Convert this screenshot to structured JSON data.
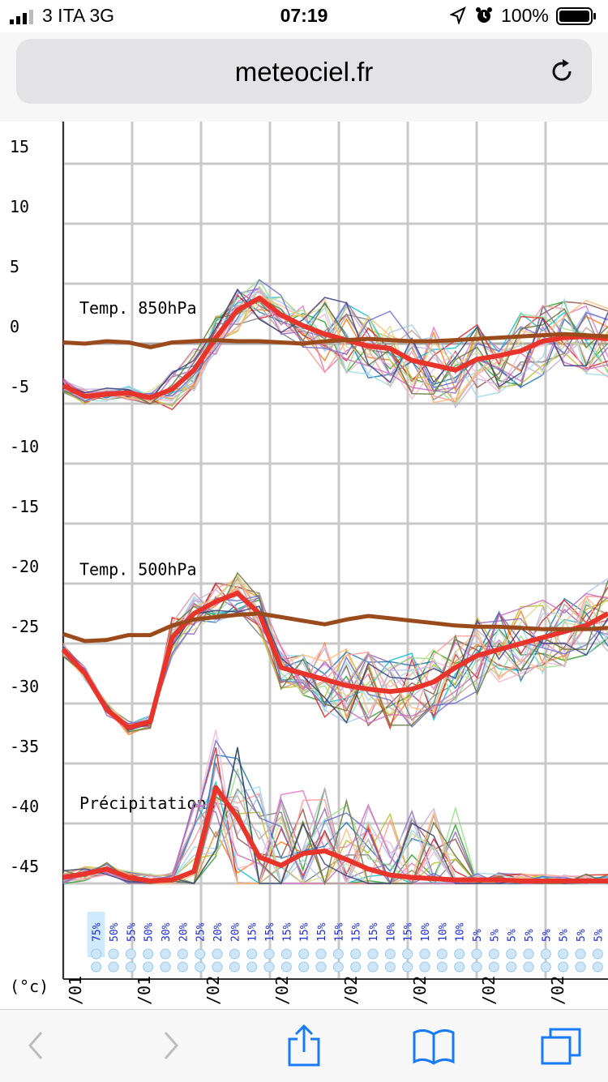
{
  "status_bar": {
    "carrier": "3 ITA   3G",
    "time": "07:19",
    "battery": "100%",
    "icons": [
      "signal-icon",
      "location-icon",
      "alarm-icon",
      "battery-icon"
    ]
  },
  "browser": {
    "url": "meteociel.fr",
    "reload_icon": "reload-icon",
    "toolbar_icons": [
      "back-icon",
      "forward-icon",
      "share-icon",
      "bookmarks-icon",
      "tabs-icon"
    ]
  },
  "chart_data": {
    "type": "line",
    "ylabel": "(°c)",
    "y_ticks": [
      15,
      10,
      5,
      0,
      -5,
      -10,
      -15,
      -20,
      -25,
      -30,
      -35,
      -40,
      -45
    ],
    "ylim": [
      -45,
      17
    ],
    "grid": true,
    "panels": [
      "Temp. 850hPa",
      "Temp. 500hPa",
      "Précipitations"
    ],
    "x_labels": [
      "/01",
      "/01",
      "/02",
      "/02",
      "/02",
      "/02",
      "/02",
      "/02"
    ],
    "precip_probabilities": [
      "75%",
      "50%",
      "55%",
      "50%",
      "30%",
      "20%",
      "25%",
      "20%",
      "20%",
      "15%",
      "15%",
      "15%",
      "15%",
      "15%",
      "15%",
      "15%",
      "15%",
      "10%",
      "15%",
      "10%",
      "10%",
      "10%",
      "5%",
      "5%",
      "5%",
      "5%",
      "5%",
      "5%",
      "5%",
      "5%"
    ],
    "colors": {
      "mean": "#e8342a",
      "climatology": "#9b4a1c",
      "control": "#1a1aff",
      "operational": "#000000"
    },
    "series": [
      {
        "name": "Temp. 850hPa mean",
        "values": [
          -3.5,
          -4.4,
          -4.2,
          -4.1,
          -4.5,
          -3.8,
          -2.2,
          0.5,
          2.8,
          3.8,
          2.4,
          1.5,
          0.8,
          0.3,
          -0.2,
          -0.4,
          -1.4,
          -1.8,
          -2.2,
          -1.3,
          -1.0,
          -0.6,
          0.2,
          0.5,
          0.6,
          0.4
        ]
      },
      {
        "name": "Temp. 850hPa climatology",
        "values": [
          0.1,
          0.0,
          0.2,
          0.1,
          -0.3,
          0.1,
          0.2,
          0.3,
          0.2,
          0.2,
          0.1,
          0.0,
          0.2,
          0.3,
          0.4,
          0.3,
          0.2,
          0.2,
          0.3,
          0.4,
          0.5,
          0.6,
          0.7,
          0.8,
          0.7,
          0.6
        ]
      },
      {
        "name": "Temp. 500hPa mean",
        "values": [
          -25.5,
          -27.5,
          -30.5,
          -32.0,
          -31.5,
          -24.5,
          -22.5,
          -21.5,
          -20.8,
          -22.5,
          -27.0,
          -27.5,
          -28.0,
          -28.5,
          -28.8,
          -29.0,
          -28.8,
          -28.2,
          -27.0,
          -26.0,
          -25.5,
          -25.0,
          -24.5,
          -24.0,
          -23.5,
          -22.5
        ]
      },
      {
        "name": "Temp. 500hPa climatology",
        "values": [
          -24.2,
          -24.8,
          -24.7,
          -24.3,
          -24.3,
          -23.5,
          -23.0,
          -22.8,
          -22.6,
          -22.5,
          -22.8,
          -23.1,
          -23.4,
          -23.0,
          -22.7,
          -22.9,
          -23.1,
          -23.3,
          -23.5,
          -23.6,
          -23.6,
          -23.7,
          -23.8,
          -23.8,
          -23.8,
          -23.7
        ]
      },
      {
        "name": "Précipitations mean",
        "values": [
          -44.5,
          -44.2,
          -43.8,
          -44.5,
          -44.8,
          -44.7,
          -44.0,
          -37.0,
          -39.5,
          -42.8,
          -43.5,
          -42.5,
          -42.3,
          -43.0,
          -43.8,
          -44.3,
          -44.5,
          -44.6,
          -44.7,
          -44.7,
          -44.7,
          -44.8,
          -44.8,
          -44.8,
          -44.8,
          -44.8
        ]
      }
    ]
  }
}
